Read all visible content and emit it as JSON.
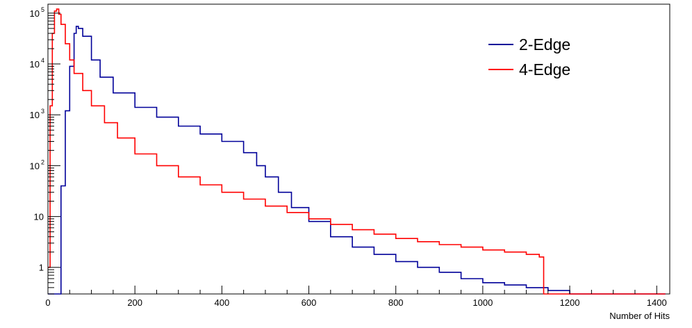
{
  "chart_data": {
    "type": "line",
    "style": "step-histogram",
    "title": "",
    "xlabel": "Number of Hits",
    "ylabel": "",
    "xlim": [
      0,
      1430
    ],
    "ylim": [
      0.3,
      150000
    ],
    "yscale": "log",
    "grid": false,
    "legend_position": "top-right",
    "x_ticks": [
      0,
      200,
      400,
      600,
      800,
      1000,
      1200,
      1400
    ],
    "y_ticks": [
      {
        "value": 1,
        "label": "1"
      },
      {
        "value": 10,
        "label": "10"
      },
      {
        "value": 100,
        "label": "10",
        "exp": "2"
      },
      {
        "value": 1000,
        "label": "10",
        "exp": "3"
      },
      {
        "value": 10000,
        "label": "10",
        "exp": "4"
      },
      {
        "value": 100000,
        "label": "10",
        "exp": "5"
      }
    ],
    "series": [
      {
        "name": "2-Edge",
        "color": "#000099",
        "x": [
          0,
          20,
          30,
          40,
          50,
          60,
          65,
          70,
          80,
          100,
          120,
          150,
          200,
          250,
          300,
          350,
          400,
          450,
          480,
          500,
          530,
          560,
          600,
          650,
          700,
          750,
          800,
          850,
          900,
          950,
          1000,
          1050,
          1100,
          1150,
          1200,
          1320,
          1380,
          1420
        ],
        "y": [
          0.3,
          0.3,
          40,
          1200,
          9000,
          40000,
          55000,
          50000,
          35000,
          12000,
          5500,
          2700,
          1400,
          900,
          600,
          420,
          300,
          180,
          100,
          60,
          30,
          15,
          8,
          4,
          2.5,
          1.8,
          1.3,
          1,
          0.8,
          0.6,
          0.5,
          0.45,
          0.4,
          0.35,
          0.3,
          0.3,
          0.3,
          0.3
        ]
      },
      {
        "name": "4-Edge",
        "color": "#ff0000",
        "x": [
          0,
          5,
          10,
          15,
          20,
          25,
          30,
          40,
          50,
          60,
          80,
          100,
          130,
          160,
          200,
          250,
          300,
          350,
          400,
          450,
          500,
          550,
          600,
          650,
          700,
          750,
          800,
          850,
          900,
          950,
          1000,
          1050,
          1100,
          1130,
          1140,
          1200,
          1420
        ],
        "y": [
          1,
          1500,
          40000,
          110000,
          120000,
          95000,
          60000,
          25000,
          12000,
          6500,
          3000,
          1500,
          700,
          350,
          170,
          100,
          60,
          42,
          30,
          22,
          16,
          12,
          9,
          7,
          5.5,
          4.5,
          3.7,
          3.2,
          2.8,
          2.5,
          2.2,
          2,
          1.8,
          1.6,
          0.3,
          0.3,
          0.3
        ]
      }
    ]
  }
}
